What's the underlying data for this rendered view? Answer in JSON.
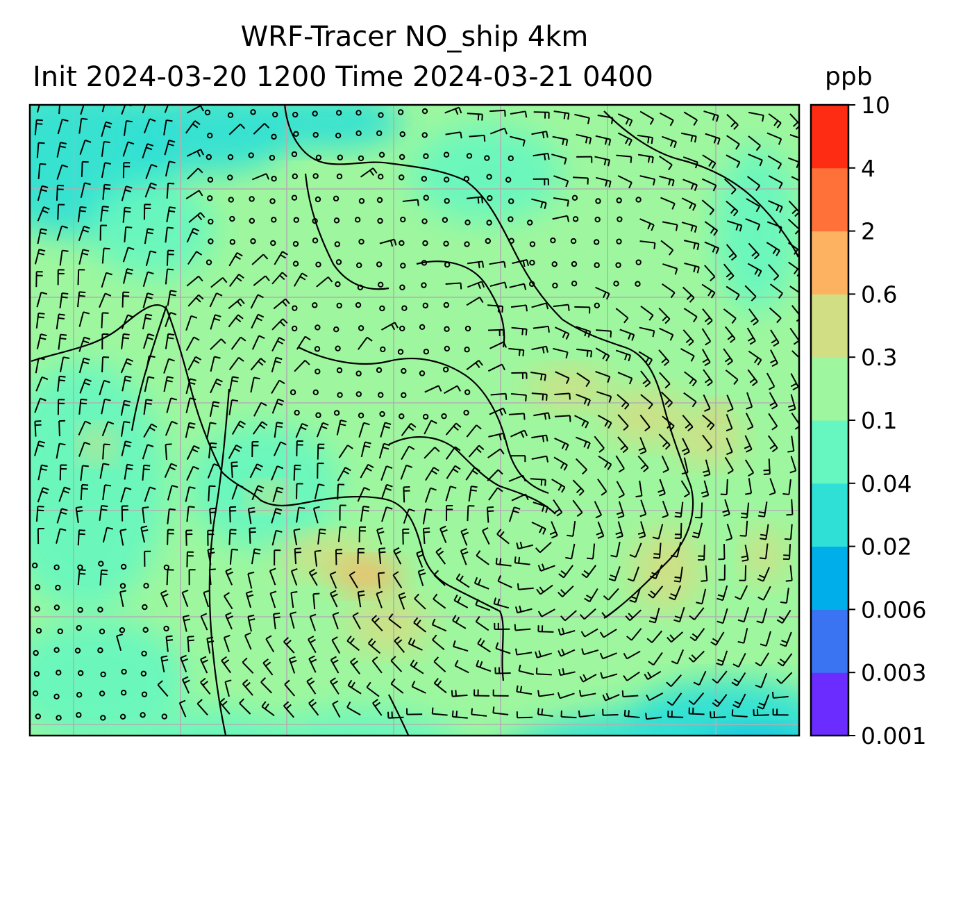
{
  "chart_data": {
    "type": "heatmap",
    "title_line1": "WRF-Tracer NO_ship 4km",
    "title_line2": "Init 2024-03-20 1200 Time 2024-03-21 0400",
    "units": "ppb",
    "colorbar": {
      "levels": [
        "0.001",
        "0.003",
        "0.006",
        "0.02",
        "0.04",
        "0.1",
        "0.3",
        "0.6",
        "2",
        "4",
        "10"
      ],
      "colors": [
        "#6a2cff",
        "#3a74f2",
        "#00aeea",
        "#2ee0d6",
        "#66f7c0",
        "#9ef79e",
        "#d2de84",
        "#fdb262",
        "#ff7139",
        "#ff2c14"
      ]
    },
    "field": {
      "dominant_level_range": [
        "0.1",
        "0.3"
      ],
      "low_region": "bottom-right",
      "high_patches_level_range": [
        "0.3",
        "0.6"
      ]
    },
    "overlays": [
      "wind-barbs",
      "coastlines",
      "gridlines"
    ],
    "grid": true
  }
}
